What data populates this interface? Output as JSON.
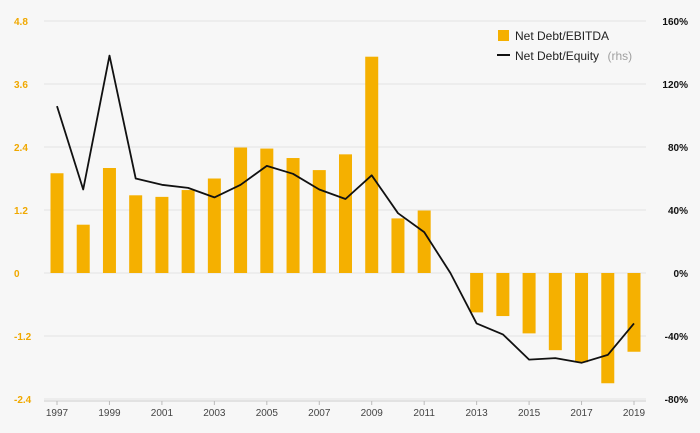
{
  "chart_data": {
    "type": "bar",
    "categories": [
      "1997",
      "1998",
      "1999",
      "2000",
      "2001",
      "2002",
      "2003",
      "2004",
      "2005",
      "2006",
      "2007",
      "2008",
      "2009",
      "2010",
      "2011",
      "2012",
      "2013",
      "2014",
      "2015",
      "2016",
      "2017",
      "2018",
      "2019"
    ],
    "x_tick_labels": [
      "1997",
      "1999",
      "2001",
      "2003",
      "2005",
      "2007",
      "2009",
      "2011",
      "2013",
      "2015",
      "2017",
      "2019"
    ],
    "series": [
      {
        "name": "Net Debt/EBITDA",
        "type": "bar",
        "axis": "left",
        "color": "#f5b000",
        "values": [
          1.9,
          0.92,
          2.0,
          1.48,
          1.45,
          1.58,
          1.8,
          2.39,
          2.37,
          2.19,
          1.96,
          2.26,
          4.12,
          1.04,
          1.19,
          0,
          -0.75,
          -0.82,
          -1.15,
          -1.47,
          -1.7,
          -2.1,
          -1.5
        ]
      },
      {
        "name": "Net Debt/Equity",
        "type": "line",
        "axis": "right",
        "color": "#111111",
        "values": [
          106,
          53,
          138,
          60,
          56,
          54,
          48,
          56,
          68,
          63,
          53,
          47,
          62,
          38,
          26,
          0,
          -32,
          -39,
          -55,
          -54,
          -57,
          -52,
          -32
        ]
      }
    ],
    "yaxis_left": {
      "ticks": [
        "4.8",
        "3.6",
        "2.4",
        "1.2",
        "0",
        "-1.2",
        "-2.4"
      ],
      "range": [
        -2.4,
        4.8
      ]
    },
    "yaxis_right": {
      "ticks": [
        "160%",
        "120%",
        "80%",
        "40%",
        "0%",
        "-40%",
        "-80%"
      ],
      "range": [
        -80,
        160
      ]
    },
    "grid": true,
    "legend": {
      "position": "top-right",
      "items": [
        {
          "label": "Net Debt/EBITDA",
          "note": ""
        },
        {
          "label": "Net Debt/Equity",
          "note": "(rhs)"
        }
      ]
    }
  }
}
